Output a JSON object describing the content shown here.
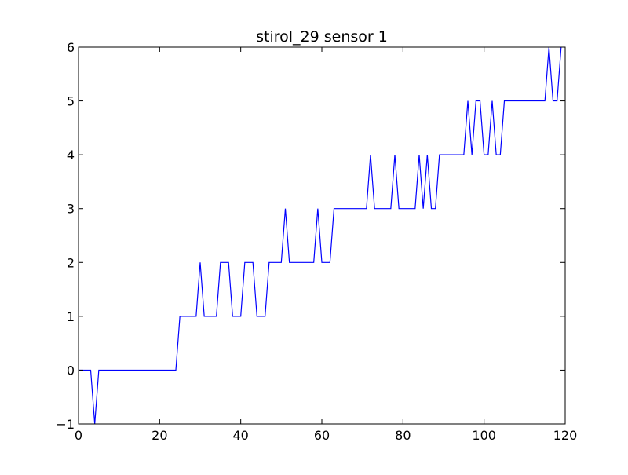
{
  "chart_data": {
    "type": "line",
    "title": "stirol_29 sensor 1",
    "xlabel": "",
    "ylabel": "",
    "xlim": [
      0,
      120
    ],
    "ylim": [
      -1,
      6
    ],
    "x_ticks": [
      0,
      20,
      40,
      60,
      80,
      100,
      120
    ],
    "y_ticks": [
      -1,
      0,
      1,
      2,
      3,
      4,
      5,
      6
    ],
    "grid": false,
    "legend": "none",
    "series": [
      {
        "color": "#0000ff",
        "x": [
          0,
          1,
          2,
          3,
          4,
          5,
          6,
          7,
          8,
          9,
          10,
          11,
          12,
          13,
          14,
          15,
          16,
          17,
          18,
          19,
          20,
          21,
          22,
          23,
          24,
          25,
          26,
          27,
          28,
          29,
          30,
          31,
          32,
          33,
          34,
          35,
          36,
          37,
          38,
          39,
          40,
          41,
          42,
          43,
          44,
          45,
          46,
          47,
          48,
          49,
          50,
          51,
          52,
          53,
          54,
          55,
          56,
          57,
          58,
          59,
          60,
          61,
          62,
          63,
          64,
          65,
          66,
          67,
          68,
          69,
          70,
          71,
          72,
          73,
          74,
          75,
          76,
          77,
          78,
          79,
          80,
          81,
          82,
          83,
          84,
          85,
          86,
          87,
          88,
          89,
          90,
          91,
          92,
          93,
          94,
          95,
          96,
          97,
          98,
          99,
          100,
          101,
          102,
          103,
          104,
          105,
          106,
          107,
          108,
          109,
          110,
          111,
          112,
          113,
          114,
          115,
          116,
          117,
          118,
          119
        ],
        "y": [
          0,
          0,
          0,
          0,
          -1,
          0,
          0,
          0,
          0,
          0,
          0,
          0,
          0,
          0,
          0,
          0,
          0,
          0,
          0,
          0,
          0,
          0,
          0,
          0,
          0,
          1,
          1,
          1,
          1,
          1,
          2,
          1,
          1,
          1,
          1,
          2,
          2,
          2,
          1,
          1,
          1,
          2,
          2,
          2,
          1,
          1,
          1,
          2,
          2,
          2,
          2,
          3,
          2,
          2,
          2,
          2,
          2,
          2,
          2,
          3,
          2,
          2,
          2,
          3,
          3,
          3,
          3,
          3,
          3,
          3,
          3,
          3,
          4,
          3,
          3,
          3,
          3,
          3,
          4,
          3,
          3,
          3,
          3,
          3,
          4,
          3,
          4,
          3,
          3,
          4,
          4,
          4,
          4,
          4,
          4,
          4,
          5,
          4,
          5,
          5,
          4,
          4,
          5,
          4,
          4,
          5,
          5,
          5,
          5,
          5,
          5,
          5,
          5,
          5,
          5,
          5,
          6,
          5,
          5,
          6
        ]
      }
    ]
  }
}
